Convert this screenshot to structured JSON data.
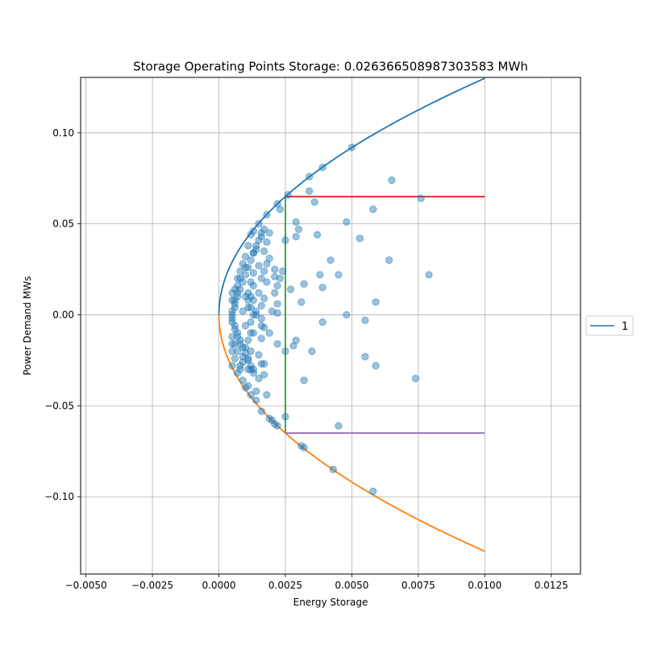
{
  "chart_data": {
    "type": "scatter",
    "title": "Storage Operating Points Storage: 0.026366508987303583 MWh",
    "xlabel": "Energy Storage",
    "ylabel": "Power Demand MWs",
    "xlim": [
      -0.0052,
      0.0136
    ],
    "ylim": [
      -0.1425,
      0.1305
    ],
    "x_ticks": [
      -0.005,
      -0.0025,
      0.0,
      0.0025,
      0.005,
      0.0075,
      0.01,
      0.0125
    ],
    "x_tick_labels": [
      "−0.0050",
      "−0.0025",
      "0.0000",
      "0.0025",
      "0.0050",
      "0.0075",
      "0.0100",
      "0.0125"
    ],
    "y_ticks": [
      -0.1,
      -0.05,
      0.0,
      0.05,
      0.1
    ],
    "y_tick_labels": [
      "−0.10",
      "−0.05",
      "0.00",
      "0.05",
      "0.10"
    ],
    "grid": true,
    "legend": {
      "placement": "right",
      "entries": [
        {
          "label": "1",
          "color": "#1f77b4"
        }
      ]
    },
    "colors": {
      "upper_curve": "#1f77b4",
      "lower_curve": "#ff7f0e",
      "vertical_line": "#2ca02c",
      "upper_limit": "#d62728",
      "lower_limit": "#9467bd",
      "points": "#1f77b4"
    },
    "curves": {
      "upper": {
        "x_range": [
          0.0,
          0.01
        ],
        "y_max": 0.13,
        "shape": "sqrt"
      },
      "lower": {
        "x_range": [
          0.0,
          0.01
        ],
        "y_min": -0.13,
        "shape": "sqrt"
      }
    },
    "lines": {
      "vertical": {
        "x": 0.0025,
        "y": [
          -0.065,
          0.065
        ]
      },
      "upper_limit": {
        "y": 0.065,
        "x": [
          0.0025,
          0.01
        ]
      },
      "lower_limit": {
        "y": -0.065,
        "x": [
          0.0025,
          0.01
        ]
      }
    },
    "points": [
      [
        0.005,
        0.092
      ],
      [
        0.0039,
        0.081
      ],
      [
        0.0034,
        0.076
      ],
      [
        0.0065,
        0.074
      ],
      [
        0.0034,
        0.068
      ],
      [
        0.0026,
        0.066
      ],
      [
        0.0076,
        0.064
      ],
      [
        0.0036,
        0.062
      ],
      [
        0.0022,
        0.061
      ],
      [
        0.0023,
        0.058
      ],
      [
        0.0058,
        0.058
      ],
      [
        0.0018,
        0.055
      ],
      [
        0.0029,
        0.051
      ],
      [
        0.0048,
        0.051
      ],
      [
        0.0015,
        0.05
      ],
      [
        0.003,
        0.047
      ],
      [
        0.0013,
        0.046
      ],
      [
        0.0019,
        0.045
      ],
      [
        0.0037,
        0.044
      ],
      [
        0.0029,
        0.043
      ],
      [
        0.0016,
        0.043
      ],
      [
        0.0053,
        0.042
      ],
      [
        0.0025,
        0.041
      ],
      [
        0.0018,
        0.04
      ],
      [
        0.0014,
        0.038
      ],
      [
        0.0017,
        0.035
      ],
      [
        0.0013,
        0.034
      ],
      [
        0.0019,
        0.031
      ],
      [
        0.0042,
        0.03
      ],
      [
        0.0064,
        0.03
      ],
      [
        0.0018,
        0.028
      ],
      [
        0.0015,
        0.027
      ],
      [
        0.0021,
        0.025
      ],
      [
        0.0024,
        0.024
      ],
      [
        0.0017,
        0.024
      ],
      [
        0.0013,
        0.023
      ],
      [
        0.0038,
        0.022
      ],
      [
        0.0045,
        0.022
      ],
      [
        0.0079,
        0.022
      ],
      [
        0.0021,
        0.021
      ],
      [
        0.0016,
        0.02
      ],
      [
        0.0023,
        0.02
      ],
      [
        0.0018,
        0.018
      ],
      [
        0.0032,
        0.017
      ],
      [
        0.0022,
        0.016
      ],
      [
        0.0013,
        0.016
      ],
      [
        0.0039,
        0.015
      ],
      [
        0.0027,
        0.014
      ],
      [
        0.0021,
        0.012
      ],
      [
        0.0015,
        0.012
      ],
      [
        0.0012,
        0.01
      ],
      [
        0.0017,
        0.009
      ],
      [
        0.0011,
        0.008
      ],
      [
        0.0059,
        0.007
      ],
      [
        0.0031,
        0.007
      ],
      [
        0.0022,
        0.006
      ],
      [
        0.0016,
        0.005
      ],
      [
        0.0012,
        0.004
      ],
      [
        0.002,
        0.002
      ],
      [
        0.0022,
        0.001
      ],
      [
        0.0014,
        0.0
      ],
      [
        0.0048,
        0.0
      ],
      [
        0.0016,
        -0.002
      ],
      [
        0.0055,
        -0.003
      ],
      [
        0.0039,
        -0.004
      ],
      [
        0.0012,
        -0.004
      ],
      [
        0.0016,
        -0.006
      ],
      [
        0.0017,
        -0.007
      ],
      [
        0.0019,
        -0.01
      ],
      [
        0.0013,
        -0.01
      ],
      [
        0.0016,
        -0.013
      ],
      [
        0.0029,
        -0.014
      ],
      [
        0.0022,
        -0.016
      ],
      [
        0.0028,
        -0.017
      ],
      [
        0.001,
        -0.018
      ],
      [
        0.0035,
        -0.02
      ],
      [
        0.0025,
        -0.02
      ],
      [
        0.0015,
        -0.022
      ],
      [
        0.0055,
        -0.023
      ],
      [
        0.0011,
        -0.024
      ],
      [
        0.0017,
        -0.027
      ],
      [
        0.0059,
        -0.028
      ],
      [
        0.0016,
        -0.027
      ],
      [
        0.0012,
        -0.03
      ],
      [
        0.0017,
        -0.033
      ],
      [
        0.0015,
        -0.035
      ],
      [
        0.0032,
        -0.036
      ],
      [
        0.0074,
        -0.035
      ],
      [
        0.0011,
        -0.039
      ],
      [
        0.0014,
        -0.042
      ],
      [
        0.0012,
        -0.044
      ],
      [
        0.0018,
        -0.044
      ],
      [
        0.0014,
        -0.047
      ],
      [
        0.0016,
        -0.053
      ],
      [
        0.0025,
        -0.056
      ],
      [
        0.0019,
        -0.057
      ],
      [
        0.002,
        -0.058
      ],
      [
        0.0021,
        -0.06
      ],
      [
        0.0045,
        -0.061
      ],
      [
        0.0022,
        -0.061
      ],
      [
        0.0031,
        -0.072
      ],
      [
        0.0032,
        -0.073
      ],
      [
        0.0043,
        -0.085
      ],
      [
        0.0058,
        -0.097
      ],
      [
        0.0005,
        0.002
      ],
      [
        0.0005,
        -0.002
      ],
      [
        0.0006,
        0.006
      ],
      [
        0.0006,
        -0.006
      ],
      [
        0.0005,
        0.0
      ],
      [
        0.0007,
        0.01
      ],
      [
        0.0007,
        -0.01
      ],
      [
        0.0008,
        0.014
      ],
      [
        0.0008,
        -0.014
      ],
      [
        0.0006,
        0.004
      ],
      [
        0.0009,
        0.018
      ],
      [
        0.0009,
        -0.018
      ],
      [
        0.001,
        0.022
      ],
      [
        0.001,
        -0.021
      ],
      [
        0.0005,
        -0.004
      ],
      [
        0.0011,
        0.026
      ],
      [
        0.0011,
        -0.025
      ],
      [
        0.0012,
        0.03
      ],
      [
        0.0012,
        -0.028
      ],
      [
        0.0006,
        0.008
      ],
      [
        0.0013,
        0.034
      ],
      [
        0.0013,
        -0.032
      ],
      [
        0.0014,
        0.036
      ],
      [
        0.0013,
        -0.03
      ],
      [
        0.0006,
        -0.008
      ],
      [
        0.0015,
        0.041
      ],
      [
        0.0009,
        -0.023
      ],
      [
        0.0016,
        0.045
      ],
      [
        0.0008,
        -0.028
      ],
      [
        0.0007,
        0.012
      ],
      [
        0.0017,
        0.047
      ],
      [
        0.0007,
        -0.032
      ],
      [
        0.0012,
        0.044
      ],
      [
        0.0009,
        -0.036
      ],
      [
        0.0007,
        -0.012
      ],
      [
        0.001,
        0.032
      ],
      [
        0.001,
        -0.04
      ],
      [
        0.0011,
        0.038
      ],
      [
        0.0008,
        0.02
      ],
      [
        0.0008,
        -0.016
      ],
      [
        0.0009,
        0.028
      ],
      [
        0.001,
        0.01
      ],
      [
        0.0011,
        0.004
      ],
      [
        0.0009,
        0.002
      ],
      [
        0.001,
        -0.006
      ],
      [
        0.0012,
        0.018
      ],
      [
        0.0013,
        0.008
      ],
      [
        0.0011,
        -0.014
      ],
      [
        0.0009,
        -0.026
      ],
      [
        0.0012,
        -0.02
      ],
      [
        0.0007,
        0.016
      ],
      [
        0.0007,
        -0.02
      ],
      [
        0.0008,
        0.024
      ],
      [
        0.0006,
        -0.024
      ],
      [
        0.0005,
        0.012
      ],
      [
        0.0005,
        -0.012
      ],
      [
        0.0005,
        0.008
      ],
      [
        0.0005,
        -0.016
      ],
      [
        0.0005,
        -0.02
      ],
      [
        0.0005,
        -0.028
      ],
      [
        0.0006,
        0.014
      ],
      [
        0.0006,
        -0.016
      ],
      [
        0.0007,
        0.02
      ],
      [
        0.0008,
        -0.03
      ],
      [
        0.001,
        0.026
      ],
      [
        0.0011,
        0.012
      ],
      [
        0.0012,
        -0.01
      ],
      [
        0.0013,
        0.0
      ],
      [
        0.0014,
        0.002
      ],
      [
        0.0011,
        -0.03
      ]
    ]
  }
}
